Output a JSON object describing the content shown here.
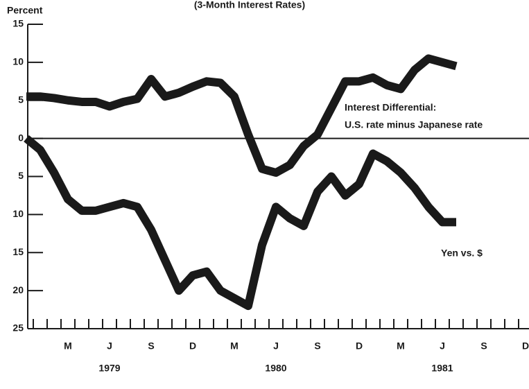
{
  "chart_data": {
    "type": "line",
    "title": "(3-Month Interest Rates)",
    "y_label": "Percent",
    "categories": [
      null,
      null,
      null,
      "M",
      null,
      null,
      "J",
      null,
      null,
      "S",
      null,
      null,
      "D",
      null,
      null,
      "M",
      null,
      null,
      "J",
      null,
      null,
      "S",
      null,
      null,
      "D",
      null,
      null,
      "M",
      null,
      null,
      "J",
      null,
      null,
      "S",
      null,
      null,
      "D"
    ],
    "years": [
      "1979",
      "1980",
      "1981"
    ],
    "series": [
      {
        "name": "Interest Differential:",
        "color": "#1a1a1a",
        "values": [
          5.5,
          5.5,
          5.3,
          5,
          4.8,
          4.8,
          4.2,
          4.8,
          5.2,
          7.8,
          5.5,
          6,
          6.8,
          7.5,
          7.3,
          5.5,
          0.5,
          -4,
          -4.5,
          -3.5,
          -1,
          0.5,
          4,
          7.5,
          7.5,
          8,
          7,
          6.5,
          9,
          10.5,
          10,
          9.5,
          null,
          null,
          null,
          null,
          null
        ]
      },
      {
        "name": "Yen vs. $",
        "color": "#1a1a1a",
        "values": [
          0,
          -1.5,
          -4.5,
          -8,
          -9.5,
          -9.5,
          -9,
          -8.5,
          -9,
          -12,
          -16,
          -20,
          -18,
          -17.5,
          -20,
          -21,
          -22,
          -14,
          -9,
          -10.5,
          -11.5,
          -7,
          -5,
          -7.5,
          -6,
          -2,
          -3,
          -4.5,
          -6.5,
          -9,
          -11,
          -11,
          null,
          null,
          null,
          null,
          null
        ]
      }
    ],
    "annotations": [
      "U.S. rate minus Japanese rate"
    ],
    "ylim": [
      -25,
      15
    ],
    "yticks": [
      {
        "value": -25,
        "label": "25"
      },
      {
        "value": -20,
        "label": "20"
      },
      {
        "value": -15,
        "label": "15"
      },
      {
        "value": -10,
        "label": "10"
      },
      {
        "value": -5,
        "label": "5"
      },
      0,
      5,
      10,
      15
    ],
    "zero_line": true
  }
}
